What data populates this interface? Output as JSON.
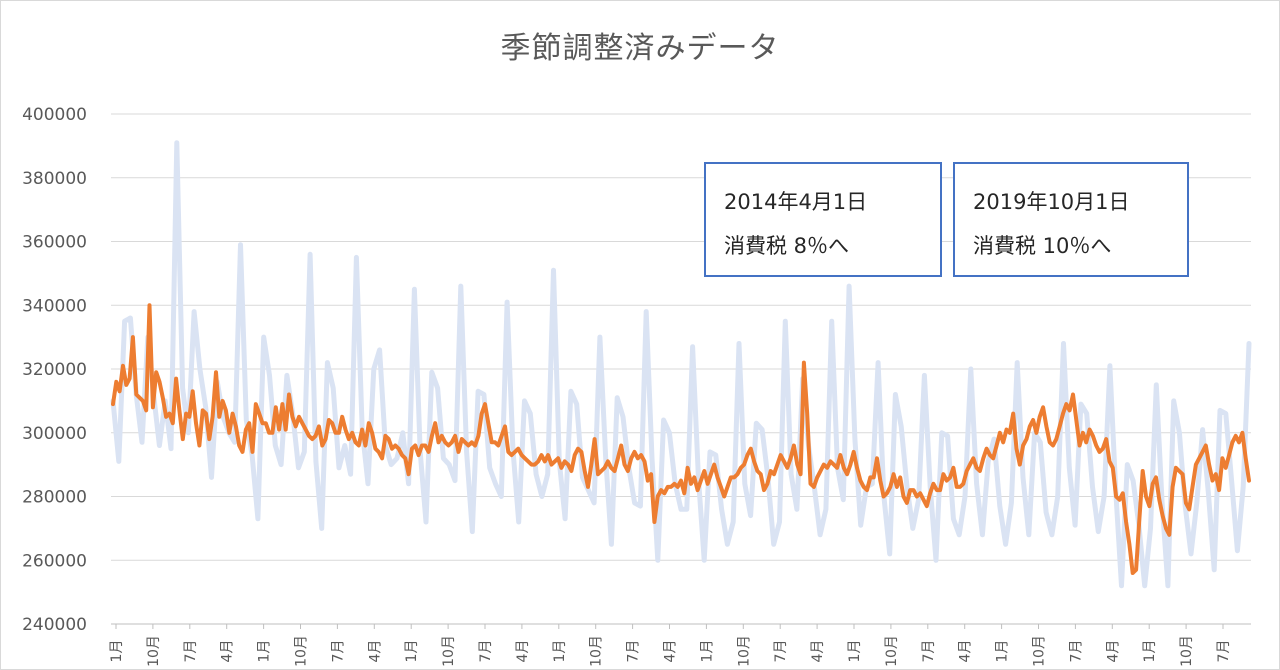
{
  "chart_data": {
    "type": "line",
    "title": "季節調整済みデータ",
    "xlabel": "",
    "ylabel": "",
    "ylim": [
      240000,
      400000
    ],
    "yticks": [
      240000,
      260000,
      280000,
      300000,
      320000,
      340000,
      360000,
      380000,
      400000
    ],
    "grid": true,
    "legend": "none",
    "x_tick_labels": [
      "1月",
      "10月",
      "7月",
      "4月",
      "1月",
      "10月",
      "7月",
      "4月",
      "1月",
      "10月",
      "7月",
      "4月",
      "1月",
      "10月",
      "7月",
      "4月",
      "1月",
      "10月",
      "7月",
      "4月",
      "1月",
      "10月",
      "7月",
      "4月",
      "1月",
      "10月",
      "7月",
      "4月",
      "1月",
      "10月",
      "7月"
    ],
    "colors": {
      "raw": "#dae3f3",
      "adjusted": "#ed7d31",
      "annotation_border": "#4472c4"
    },
    "series": [
      {
        "values": [
          310000,
          291000,
          335000,
          336000,
          312000,
          297000,
          330000,
          312000,
          296000,
          310000,
          295000,
          391000,
          314000,
          300000,
          338000,
          320000,
          308000,
          286000,
          316000,
          305000,
          300000,
          297000,
          359000,
          304000,
          293000,
          273000,
          330000,
          318000,
          296000,
          290000,
          318000,
          306000,
          289000,
          294000,
          356000,
          291000,
          270000,
          322000,
          314000,
          289000,
          296000,
          287000,
          355000,
          301000,
          284000,
          320000,
          326000,
          296000,
          290000,
          292000,
          300000,
          284000,
          345000,
          294000,
          272000,
          319000,
          314000,
          292000,
          290000,
          285000,
          346000,
          294000,
          269000,
          313000,
          312000,
          289000,
          284000,
          280000,
          341000,
          295000,
          272000,
          310000,
          306000,
          287000,
          280000,
          287000,
          351000,
          291000,
          273000,
          313000,
          309000,
          286000,
          282000,
          278000,
          330000,
          292000,
          265000,
          311000,
          305000,
          289000,
          278000,
          277000,
          338000,
          292000,
          260000,
          304000,
          300000,
          284000,
          276000,
          276000,
          327000,
          286000,
          260000,
          294000,
          293000,
          276000,
          265000,
          272000,
          328000,
          284000,
          274000,
          303000,
          301000,
          286000,
          265000,
          272000,
          335000,
          287000,
          276000,
          317000,
          296000,
          283000,
          268000,
          276000,
          335000,
          289000,
          279000,
          346000,
          298000,
          271000,
          283000,
          284000,
          322000,
          280000,
          262000,
          312000,
          302000,
          283000,
          270000,
          279000,
          318000,
          283000,
          260000,
          300000,
          299000,
          273000,
          268000,
          280000,
          320000,
          284000,
          268000,
          291000,
          298000,
          277000,
          265000,
          278000,
          322000,
          286000,
          268000,
          300000,
          297000,
          275000,
          268000,
          280000,
          328000,
          289000,
          271000,
          309000,
          306000,
          283000,
          269000,
          280000,
          321000,
          282000,
          252000,
          290000,
          285000,
          271000,
          252000,
          270000,
          315000,
          278000,
          252000,
          310000,
          300000,
          277000,
          262000,
          278000,
          301000,
          281000,
          257000,
          307000,
          306000,
          285000,
          263000,
          283000,
          328000
        ]
      },
      {
        "values": [
          309000,
          316000,
          313000,
          321000,
          315000,
          317000,
          330000,
          312000,
          311000,
          310000,
          307000,
          340000,
          308000,
          319000,
          316000,
          311000,
          305000,
          306000,
          303000,
          317000,
          307000,
          298000,
          306000,
          305000,
          313000,
          303000,
          296000,
          307000,
          306000,
          298000,
          305000,
          319000,
          305000,
          310000,
          307000,
          300000,
          306000,
          302000,
          296000,
          294000,
          301000,
          303000,
          294000,
          309000,
          306000,
          303000,
          303000,
          300000,
          300000,
          308000,
          301000,
          309000,
          301000,
          312000,
          305000,
          302000,
          305000,
          303000,
          301000,
          299000,
          298000,
          299000,
          302000,
          296000,
          298000,
          304000,
          303000,
          300000,
          300000,
          305000,
          301000,
          298000,
          300000,
          297000,
          296000,
          301000,
          296000,
          303000,
          300000,
          295000,
          294000,
          292000,
          299000,
          298000,
          295000,
          296000,
          295000,
          293000,
          292000,
          287000,
          295000,
          296000,
          293000,
          296000,
          296000,
          294000,
          299000,
          303000,
          297000,
          299000,
          297000,
          296000,
          297000,
          299000,
          294000,
          298000,
          297000,
          296000,
          297000,
          296000,
          299000,
          306000,
          309000,
          303000,
          297000,
          297000,
          296000,
          299000,
          302000,
          294000,
          293000,
          294000,
          295000,
          293000,
          292000,
          291000,
          290000,
          290000,
          291000,
          293000,
          291000,
          293000,
          290000,
          291000,
          292000,
          289000,
          291000,
          290000,
          288000,
          293000,
          295000,
          294000,
          288000,
          283000,
          290000,
          298000,
          287000,
          288000,
          289000,
          291000,
          289000,
          288000,
          292000,
          296000,
          290000,
          288000,
          292000,
          294000,
          292000,
          293000,
          291000,
          285000,
          287000,
          272000,
          280000,
          282000,
          281000,
          283000,
          283000,
          284000,
          283000,
          285000,
          281000,
          289000,
          284000,
          286000,
          282000,
          285000,
          288000,
          284000,
          287000,
          290000,
          286000,
          283000,
          280000,
          283000,
          286000,
          286000,
          287000,
          289000,
          290000,
          293000,
          295000,
          291000,
          288000,
          287000,
          282000,
          284000,
          288000,
          287000,
          290000,
          293000,
          291000,
          289000,
          292000,
          296000,
          290000,
          287000,
          322000,
          306000,
          284000,
          283000,
          286000,
          288000,
          290000,
          289000,
          291000,
          290000,
          289000,
          293000,
          289000,
          287000,
          290000,
          294000,
          289000,
          285000,
          283000,
          282000,
          286000,
          286000,
          292000,
          285000,
          280000,
          281000,
          283000,
          287000,
          283000,
          286000,
          280000,
          278000,
          282000,
          282000,
          280000,
          281000,
          279000,
          277000,
          281000,
          284000,
          282000,
          282000,
          287000,
          285000,
          286000,
          289000,
          283000,
          283000,
          284000,
          288000,
          290000,
          292000,
          289000,
          288000,
          292000,
          295000,
          293000,
          292000,
          296000,
          300000,
          297000,
          301000,
          300000,
          306000,
          295000,
          290000,
          296000,
          298000,
          302000,
          304000,
          300000,
          305000,
          308000,
          302000,
          297000,
          296000,
          298000,
          302000,
          306000,
          309000,
          307000,
          312000,
          304000,
          296000,
          300000,
          297000,
          301000,
          299000,
          296000,
          294000,
          295000,
          298000,
          291000,
          289000,
          280000,
          279000,
          281000,
          272000,
          265000,
          256000,
          257000,
          273000,
          288000,
          280000,
          277000,
          284000,
          286000,
          279000,
          274000,
          270000,
          268000,
          283000,
          289000,
          288000,
          287000,
          278000,
          276000,
          283000,
          290000,
          292000,
          294000,
          296000,
          290000,
          285000,
          287000,
          282000,
          292000,
          289000,
          293000,
          297000,
          299000,
          297000,
          300000,
          292000,
          285000
        ]
      }
    ],
    "annotations": [
      {
        "line1": "2014年4月1日",
        "line2": "消費税 8％へ"
      },
      {
        "line1": "2019年10月1日",
        "line2": "消費税 10％へ"
      }
    ]
  }
}
